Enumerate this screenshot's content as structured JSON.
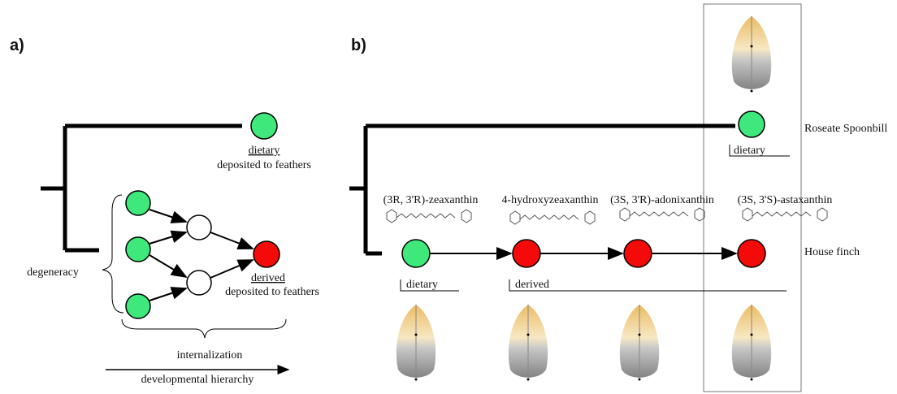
{
  "panel_a": {
    "label": "a)",
    "top_tip": {
      "label": "dietary",
      "caption": "deposited to feathers"
    },
    "bottom_tip": {
      "label": "derived",
      "caption": "deposited to feathers"
    },
    "brace_left": "degeneracy",
    "brace_bottom": "internalization",
    "axis": "developmental hierarchy"
  },
  "panel_b": {
    "label": "b)",
    "species": [
      "Roseate Spoonbill",
      "House finch"
    ],
    "spoonbill_tag": "dietary",
    "compounds": [
      "(3R, 3'R)-zeaxanthin",
      "4-hydroxyzeaxanthin",
      "(3S, 3'R)-adonixanthin",
      "(3S, 3'S)-astaxanthin"
    ],
    "finch_tags": [
      "dietary",
      "derived"
    ]
  }
}
